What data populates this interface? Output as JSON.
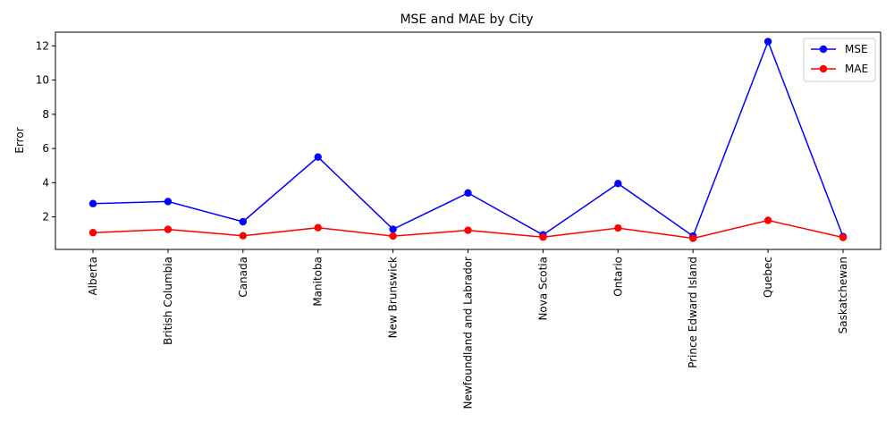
{
  "chart_data": {
    "type": "line",
    "title": "MSE and MAE by City",
    "xlabel": "",
    "ylabel": "Error",
    "categories": [
      "Alberta",
      "British Columbia",
      "Canada",
      "Manitoba",
      "New Brunswick",
      "Newfoundland and Labrador",
      "Nova Scotia",
      "Ontario",
      "Prince Edward Island",
      "Quebec",
      "Saskatchewan"
    ],
    "series": [
      {
        "name": "MSE",
        "color": "#0000ff",
        "values": [
          2.78,
          2.9,
          1.72,
          5.5,
          1.28,
          3.4,
          0.95,
          3.95,
          0.88,
          12.25,
          0.85
        ]
      },
      {
        "name": "MAE",
        "color": "#ff0000",
        "values": [
          1.08,
          1.27,
          0.9,
          1.37,
          0.88,
          1.22,
          0.82,
          1.35,
          0.75,
          1.8,
          0.8
        ]
      }
    ],
    "ylim": [
      0.1,
      12.8
    ],
    "yticks": [
      2,
      4,
      6,
      8,
      10,
      12
    ],
    "grid": false,
    "legend_position": "top-right",
    "markers": true
  }
}
